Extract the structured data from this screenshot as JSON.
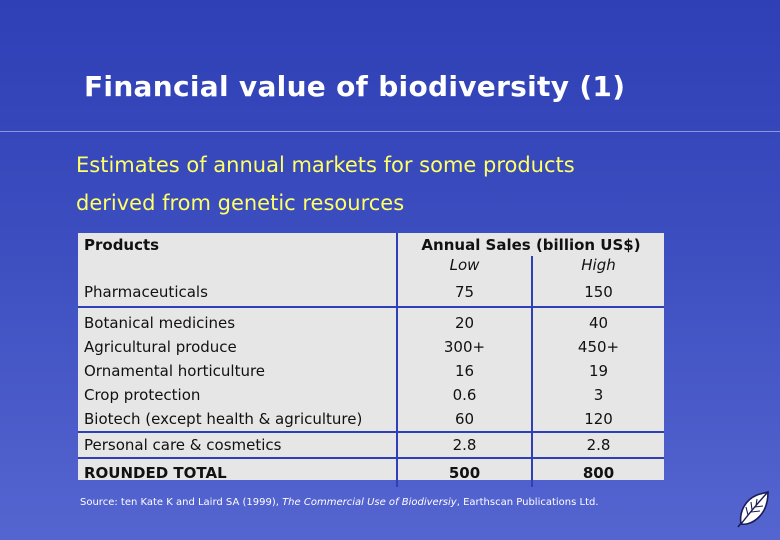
{
  "title": "Financial value of biodiversity (1)",
  "subtitle_lines": [
    "Estimates of annual markets for some products",
    "derived from genetic resources"
  ],
  "table": {
    "col_products": "Products",
    "col_sales": "Annual Sales (billion US$)",
    "col_low": "Low",
    "col_high": "High",
    "rows": [
      {
        "product": "Pharmaceuticals",
        "low": "75",
        "high": "150"
      },
      {
        "product": "Botanical medicines",
        "low": "20",
        "high": "40"
      },
      {
        "product": "Agricultural produce",
        "low": "300+",
        "high": "450+"
      },
      {
        "product": "Ornamental horticulture",
        "low": "16",
        "high": "19"
      },
      {
        "product": "Crop protection",
        "low": "0.6",
        "high": "3"
      },
      {
        "product": "Biotech (except health & agriculture)",
        "low": "60",
        "high": "120"
      },
      {
        "product": "Personal care & cosmetics",
        "low": "2.8",
        "high": "2.8"
      }
    ],
    "total": {
      "label": "ROUNDED TOTAL",
      "low": "500",
      "high": "800"
    }
  },
  "source": {
    "prefix": "Source: ten Kate K and Laird SA (1999), ",
    "book": "The Commercial Use of Biodiversiy",
    "suffix": ", Earthscan Publications Ltd."
  },
  "colors": {
    "background": "#3a4cbe",
    "title": "#ffffff",
    "subtitle": "#ffff66",
    "table_bg": "#e6e6e6",
    "table_lines": "#2f3fb6"
  },
  "icons": {
    "logo": "leaf-icon"
  }
}
